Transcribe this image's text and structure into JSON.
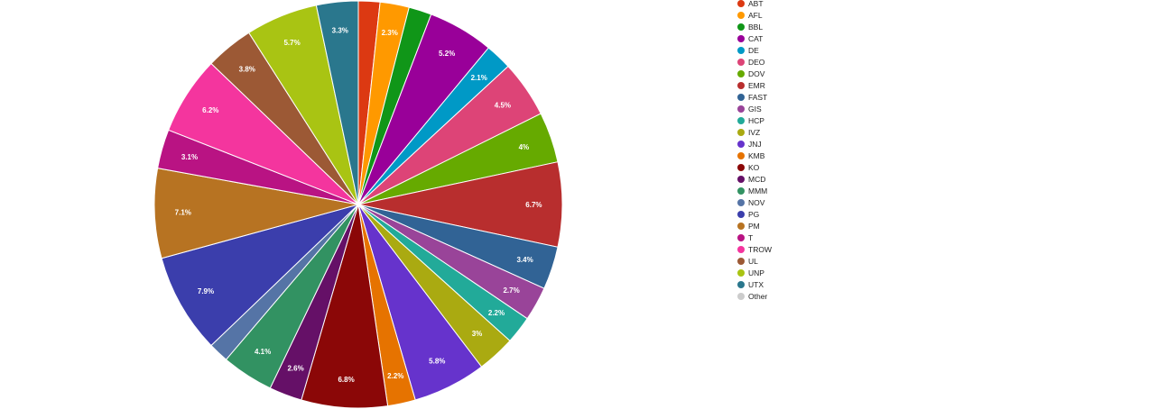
{
  "chart_data": {
    "type": "pie",
    "title": "",
    "legend_position": "right",
    "slices": [
      {
        "label": "ABT",
        "value": 1.7,
        "display": "",
        "color": "#dc3912"
      },
      {
        "label": "AFL",
        "value": 2.3,
        "display": "2.3%",
        "color": "#ff9900"
      },
      {
        "label": "BBL",
        "value": 1.8,
        "display": "",
        "color": "#109618"
      },
      {
        "label": "CAT",
        "value": 5.2,
        "display": "5.2%",
        "color": "#990099"
      },
      {
        "label": "DE",
        "value": 2.1,
        "display": "2.1%",
        "color": "#0099c6"
      },
      {
        "label": "DEO",
        "value": 4.5,
        "display": "4.5%",
        "color": "#dd4477"
      },
      {
        "label": "DOV",
        "value": 4.0,
        "display": "4%",
        "color": "#66aa00"
      },
      {
        "label": "EMR",
        "value": 6.7,
        "display": "6.7%",
        "color": "#b82e2e"
      },
      {
        "label": "FAST",
        "value": 3.4,
        "display": "3.4%",
        "color": "#316395"
      },
      {
        "label": "GIS",
        "value": 2.7,
        "display": "2.7%",
        "color": "#994499"
      },
      {
        "label": "HCP",
        "value": 2.2,
        "display": "2.2%",
        "color": "#22aa99"
      },
      {
        "label": "IVZ",
        "value": 3.0,
        "display": "3%",
        "color": "#aaaa11"
      },
      {
        "label": "JNJ",
        "value": 5.8,
        "display": "5.8%",
        "color": "#6633cc"
      },
      {
        "label": "KMB",
        "value": 2.2,
        "display": "2.2%",
        "color": "#e67300"
      },
      {
        "label": "KO",
        "value": 6.8,
        "display": "6.8%",
        "color": "#8b0707"
      },
      {
        "label": "MCD",
        "value": 2.6,
        "display": "2.6%",
        "color": "#651067"
      },
      {
        "label": "MMM",
        "value": 4.1,
        "display": "4.1%",
        "color": "#329262"
      },
      {
        "label": "NOV",
        "value": 1.6,
        "display": "",
        "color": "#5574a6"
      },
      {
        "label": "PG",
        "value": 7.9,
        "display": "7.9%",
        "color": "#3b3eac"
      },
      {
        "label": "PM",
        "value": 7.1,
        "display": "7.1%",
        "color": "#b77322"
      },
      {
        "label": "T",
        "value": 3.1,
        "display": "3.1%",
        "color": "#b91383"
      },
      {
        "label": "TROW",
        "value": 6.2,
        "display": "6.2%",
        "color": "#f4359e"
      },
      {
        "label": "UL",
        "value": 3.8,
        "display": "3.8%",
        "color": "#9c5935"
      },
      {
        "label": "UNP",
        "value": 5.7,
        "display": "5.7%",
        "color": "#a9c413"
      },
      {
        "label": "UTX",
        "value": 3.3,
        "display": "3.3%",
        "color": "#2a778d"
      },
      {
        "label": "Other",
        "value": 0.0,
        "display": "",
        "color": "#cccccc"
      }
    ]
  }
}
